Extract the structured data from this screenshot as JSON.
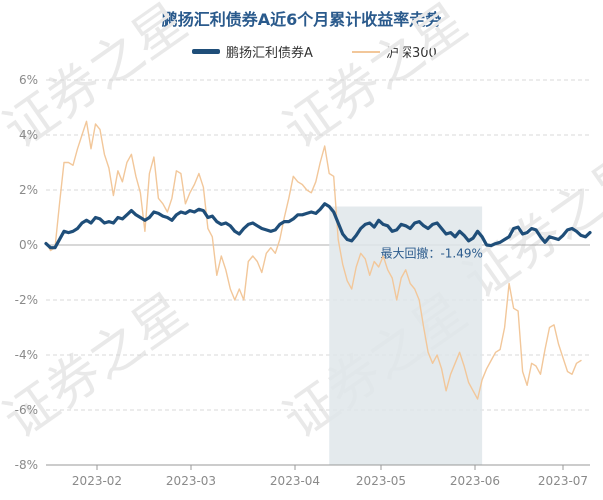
{
  "title": "鹏扬汇利债券A近6个月累计收益率走势",
  "watermark": "证券之星",
  "chart_data": {
    "type": "line",
    "title": "鹏扬汇利债券A近6个月累计收益率走势",
    "xlabel": "",
    "ylabel": "",
    "ylim": [
      -8,
      6
    ],
    "yticks": [
      6,
      4,
      2,
      0,
      -2,
      -4,
      -6,
      -8
    ],
    "ytick_labels": [
      "6%",
      "4%",
      "2%",
      "0%",
      "-2%",
      "-4%",
      "-6%",
      "-8%"
    ],
    "xticks": [
      "2023-02",
      "2023-03",
      "2023-04",
      "2023-05",
      "2023-06",
      "2023-07"
    ],
    "legend_position": "top",
    "grid": "horizontal dashed",
    "annotation": {
      "label": "最大回撤：-1.49%",
      "start_index": 63,
      "end_index": 97,
      "color": "#dfe6ea"
    },
    "series": [
      {
        "name": "鹏扬汇利债券A",
        "color": "#1f4e79",
        "values": [
          0.05,
          -0.1,
          -0.1,
          0.2,
          0.5,
          0.45,
          0.5,
          0.6,
          0.8,
          0.9,
          0.8,
          1.0,
          0.95,
          0.8,
          0.85,
          0.8,
          1.0,
          0.95,
          1.1,
          1.25,
          1.1,
          1.0,
          0.9,
          1.0,
          1.2,
          1.15,
          1.05,
          1.0,
          0.9,
          1.1,
          1.2,
          1.15,
          1.25,
          1.2,
          1.3,
          1.25,
          1.0,
          1.05,
          0.85,
          0.75,
          0.8,
          0.7,
          0.5,
          0.4,
          0.6,
          0.75,
          0.8,
          0.7,
          0.6,
          0.55,
          0.5,
          0.55,
          0.75,
          0.85,
          0.85,
          0.95,
          1.1,
          1.1,
          1.15,
          1.2,
          1.15,
          1.3,
          1.5,
          1.4,
          1.2,
          0.8,
          0.4,
          0.2,
          0.15,
          0.35,
          0.6,
          0.75,
          0.8,
          0.65,
          0.9,
          0.75,
          0.7,
          0.5,
          0.55,
          0.75,
          0.7,
          0.6,
          0.8,
          0.85,
          0.7,
          0.6,
          0.75,
          0.8,
          0.6,
          0.4,
          0.45,
          0.3,
          0.5,
          0.35,
          0.15,
          0.25,
          0.5,
          0.3,
          0.0,
          -0.02,
          0.05,
          0.1,
          0.2,
          0.3,
          0.6,
          0.65,
          0.4,
          0.45,
          0.6,
          0.55,
          0.3,
          0.1,
          0.3,
          0.25,
          0.2,
          0.35,
          0.55,
          0.6,
          0.5,
          0.35,
          0.3,
          0.45
        ]
      },
      {
        "name": "沪深300",
        "color": "#f2c79a",
        "values": [
          0.1,
          -0.2,
          -0.1,
          1.5,
          3.0,
          3.0,
          2.9,
          3.5,
          4.0,
          4.5,
          3.5,
          4.4,
          4.2,
          3.3,
          2.8,
          1.8,
          2.7,
          2.3,
          3.0,
          3.3,
          2.5,
          1.9,
          0.5,
          2.6,
          3.2,
          1.7,
          1.5,
          1.2,
          1.7,
          2.7,
          2.6,
          1.5,
          1.9,
          2.2,
          2.6,
          2.1,
          0.6,
          0.3,
          -1.1,
          -0.4,
          -0.9,
          -1.6,
          -2.0,
          -1.6,
          -2.0,
          -0.6,
          -0.4,
          -0.6,
          -1.0,
          -0.3,
          -0.1,
          -0.3,
          0.2,
          1.0,
          1.7,
          2.5,
          2.3,
          2.2,
          2.0,
          1.9,
          2.3,
          3.0,
          3.6,
          2.6,
          2.5,
          0.2,
          -0.7,
          -1.3,
          -1.6,
          -0.8,
          -0.3,
          -0.5,
          -1.1,
          -0.6,
          -0.8,
          -0.4,
          -0.9,
          -1.2,
          -2.0,
          -1.2,
          -0.9,
          -1.4,
          -1.6,
          -2.0,
          -3.0,
          -3.9,
          -4.3,
          -4.0,
          -4.5,
          -5.3,
          -4.7,
          -4.3,
          -3.9,
          -4.4,
          -5.0,
          -5.3,
          -5.6,
          -4.9,
          -4.5,
          -4.2,
          -3.9,
          -3.8,
          -3.0,
          -1.4,
          -2.3,
          -2.4,
          -4.6,
          -5.1,
          -4.3,
          -4.4,
          -4.7,
          -3.8,
          -3.0,
          -2.9,
          -3.6,
          -4.1,
          -4.6,
          -4.7,
          -4.3,
          -4.2
        ]
      }
    ]
  }
}
